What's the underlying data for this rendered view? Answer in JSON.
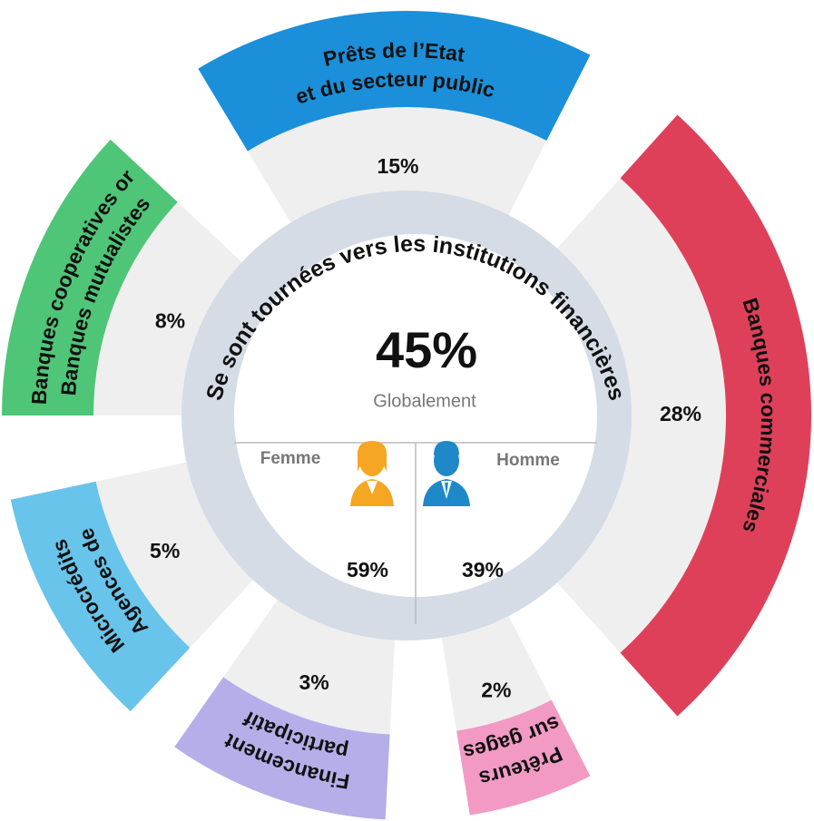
{
  "center": {
    "ring_text": "Se sont tournées vers les institutions financières",
    "value": "45%",
    "caption": "Globalement",
    "groups": [
      {
        "label": "Femme",
        "value": "59%"
      },
      {
        "label": "Homme",
        "value": "39%"
      }
    ]
  },
  "segments": [
    {
      "lines": [
        "Prêts de l’Etat",
        "et du secteur public"
      ],
      "value": "15%",
      "color": "#1b8fd9"
    },
    {
      "lines": [
        "Banques commerciales"
      ],
      "value": "28%",
      "color": "#df4059"
    },
    {
      "lines": [
        "Prêteurs",
        "sur gages"
      ],
      "value": "2%",
      "color": "#f29ac4"
    },
    {
      "lines": [
        "Financement",
        "participatif"
      ],
      "value": "3%",
      "color": "#b5aee9"
    },
    {
      "lines": [
        "Microcrédits",
        "Agences de"
      ],
      "value": "5%",
      "color": "#68c4ea"
    },
    {
      "lines": [
        "Banques cooperatives or",
        "Banques mutualistes"
      ],
      "value": "8%",
      "color": "#4fc577"
    }
  ]
}
